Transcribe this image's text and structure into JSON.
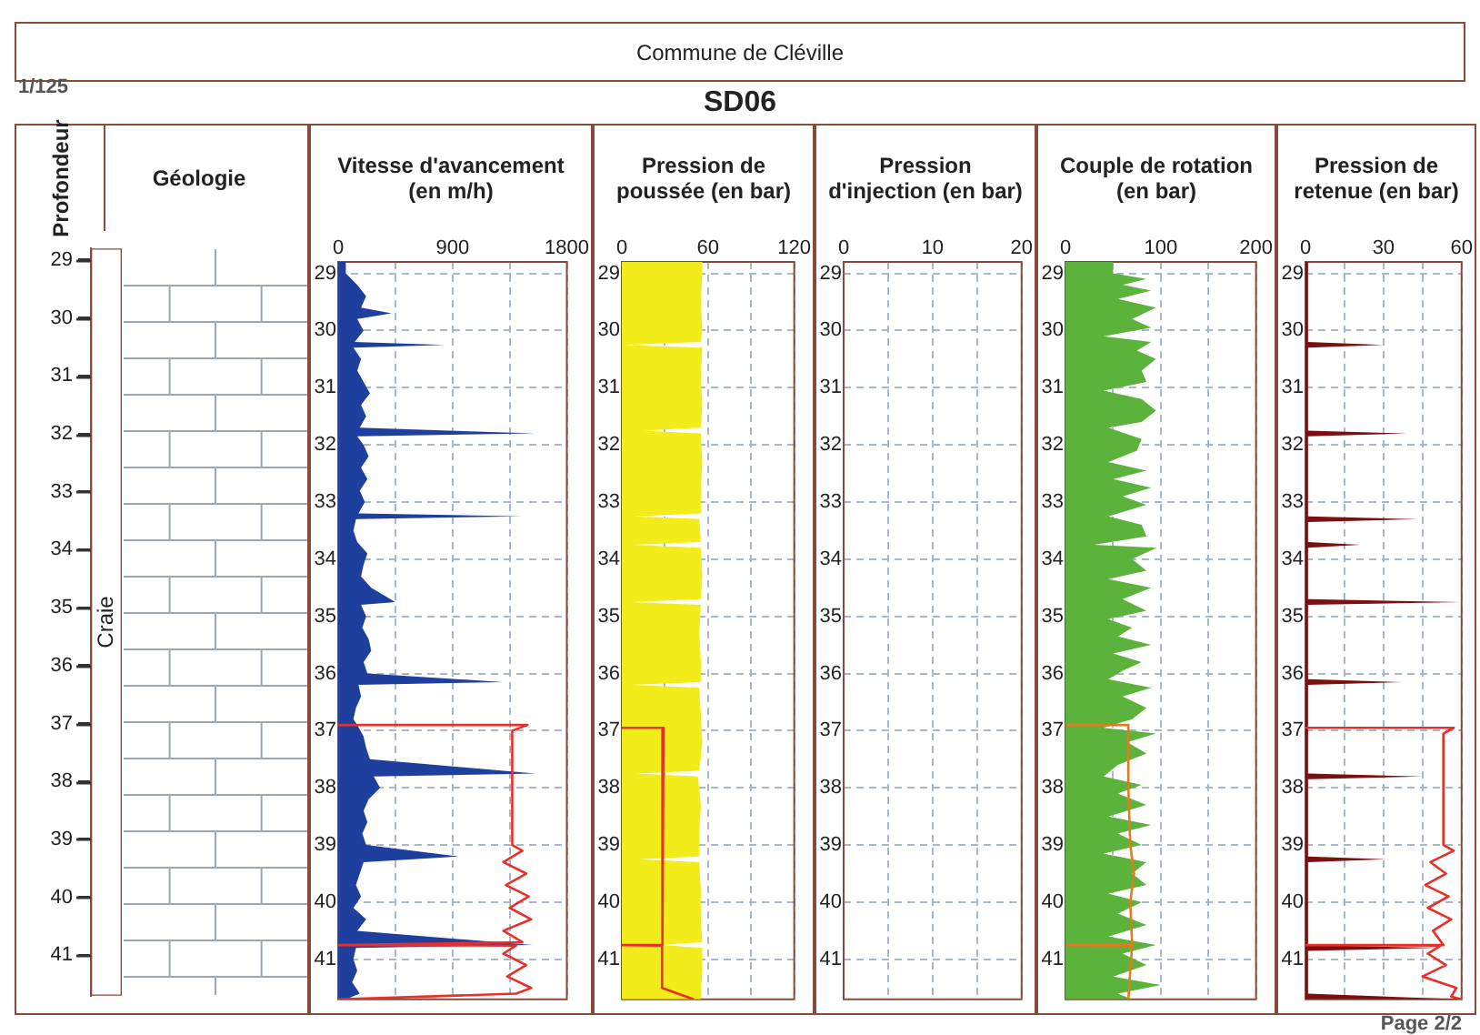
{
  "chart_data": [
    {
      "type": "bar",
      "title": "Géologie",
      "ylabel": "Profondeur",
      "categories": [
        "Craie"
      ],
      "base": [
        28.8
      ],
      "values": [
        12.9
      ],
      "color": "#ffffff",
      "grid": "y",
      "ylim": [
        41.7,
        28.8
      ],
      "yticks": [
        29,
        30,
        31,
        32,
        33,
        34,
        35,
        36,
        37,
        38,
        39,
        40,
        41
      ],
      "annotations": [
        "Commune de Cléville",
        "1/125",
        "SD06",
        "Page 2/2"
      ]
    },
    {
      "type": "area",
      "orientation": "horizontal",
      "title": "Vitesse d'avancement (en m/h)",
      "xlim": [
        0,
        1800
      ],
      "xticks": [
        0,
        {
          "value": 450,
          "label": null
        },
        900,
        {
          "value": 1350,
          "label": null
        },
        1800
      ],
      "ylim": [
        41.7,
        28.8
      ],
      "yticks": [
        29,
        30,
        31,
        32,
        33,
        34,
        35,
        36,
        37,
        38,
        39,
        40,
        41
      ],
      "grid": true,
      "series": [
        {
          "color": "#1f3f9f",
          "x": [
            28.8,
            29.0,
            29.2,
            29.4,
            29.6,
            29.7,
            29.8,
            30.0,
            30.2,
            30.25,
            30.3,
            30.5,
            30.7,
            30.9,
            31.1,
            31.3,
            31.5,
            31.7,
            31.8,
            31.85,
            32.0,
            32.2,
            32.4,
            32.6,
            32.8,
            33.0,
            33.2,
            33.25,
            33.3,
            33.5,
            33.7,
            33.9,
            34.1,
            34.3,
            34.5,
            34.75,
            34.8,
            35.0,
            35.2,
            35.4,
            35.6,
            35.8,
            36.0,
            36.15,
            36.2,
            36.4,
            36.6,
            36.8,
            36.9,
            37.1,
            37.3,
            37.5,
            37.75,
            37.8,
            38.0,
            38.2,
            38.4,
            38.6,
            38.8,
            39.0,
            39.2,
            39.3,
            39.5,
            39.7,
            39.9,
            40.1,
            40.3,
            40.5,
            40.75,
            40.8,
            41.0,
            41.2,
            41.4,
            41.6,
            41.7
          ],
          "values": [
            60,
            60,
            150,
            220,
            180,
            420,
            150,
            200,
            130,
            840,
            120,
            180,
            150,
            200,
            250,
            180,
            220,
            170,
            1550,
            150,
            200,
            240,
            180,
            230,
            170,
            210,
            160,
            1450,
            140,
            120,
            150,
            230,
            200,
            180,
            260,
            450,
            180,
            220,
            190,
            240,
            260,
            200,
            230,
            1300,
            160,
            180,
            140,
            120,
            150,
            200,
            220,
            250,
            1550,
            280,
            330,
            240,
            200,
            230,
            190,
            220,
            950,
            200,
            170,
            140,
            180,
            120,
            220,
            150,
            1530,
            140,
            120,
            150,
            110,
            170,
            60
          ]
        },
        {
          "type": "line",
          "color": "#e8302a",
          "x": [
            36.9,
            36.9,
            37.0,
            38.0,
            39.0,
            39.1,
            39.3,
            39.5,
            39.7,
            39.9,
            40.1,
            40.3,
            40.5,
            40.7,
            40.75,
            40.76,
            40.9,
            41.1,
            41.3,
            41.5,
            41.6,
            41.7
          ],
          "values": [
            0,
            1490,
            1370,
            1370,
            1370,
            1450,
            1300,
            1480,
            1320,
            1500,
            1350,
            1520,
            1300,
            1450,
            0,
            1400,
            1300,
            1480,
            1330,
            1520,
            1400,
            0
          ]
        }
      ]
    },
    {
      "type": "area",
      "orientation": "horizontal",
      "title": "Pression de poussée (en bar)",
      "xlim": [
        0,
        120
      ],
      "xticks": [
        0,
        {
          "value": 30,
          "label": null
        },
        60,
        {
          "value": 90,
          "label": null
        },
        120
      ],
      "ylim": [
        41.7,
        28.8
      ],
      "yticks": [
        29,
        30,
        31,
        32,
        33,
        34,
        35,
        36,
        37,
        38,
        39,
        40,
        41
      ],
      "grid": true,
      "series": [
        {
          "color": "#f2ec1a",
          "x": [
            28.8,
            29.0,
            29.5,
            30.0,
            30.2,
            30.25,
            30.3,
            30.8,
            31.3,
            31.7,
            31.75,
            31.8,
            32.3,
            32.8,
            33.2,
            33.25,
            33.3,
            33.7,
            33.75,
            33.8,
            34.3,
            34.7,
            34.75,
            34.8,
            35.3,
            35.8,
            36.15,
            36.2,
            36.25,
            36.7,
            37.2,
            37.7,
            37.75,
            37.8,
            38.3,
            38.8,
            39.2,
            39.25,
            39.3,
            39.8,
            40.3,
            40.7,
            40.75,
            40.8,
            41.2,
            41.6,
            41.7
          ],
          "values": [
            56,
            56,
            55,
            56,
            55,
            2,
            56,
            55,
            56,
            55,
            15,
            55,
            56,
            55,
            55,
            8,
            54,
            55,
            8,
            55,
            56,
            55,
            7,
            55,
            54,
            55,
            55,
            7,
            54,
            55,
            56,
            54,
            10,
            53,
            55,
            54,
            54,
            12,
            54,
            55,
            55,
            56,
            28,
            56,
            56,
            55,
            55
          ]
        },
        {
          "type": "line",
          "color": "#e8302a",
          "x": [
            36.95,
            36.95,
            38.0,
            39.0,
            40.0,
            40.75,
            40.75,
            40.76,
            41.5,
            41.7
          ],
          "values": [
            0,
            29,
            29,
            28,
            28,
            28,
            0,
            28,
            28,
            50
          ]
        }
      ]
    },
    {
      "type": "line",
      "orientation": "horizontal",
      "title": "Pression d'injection (en bar)",
      "xlim": [
        0,
        20
      ],
      "xticks": [
        0,
        {
          "value": 5,
          "label": null
        },
        10,
        {
          "value": 15,
          "label": null
        },
        20
      ],
      "ylim": [
        41.7,
        28.8
      ],
      "yticks": [
        29,
        30,
        31,
        32,
        33,
        34,
        35,
        36,
        37,
        38,
        39,
        40,
        41
      ],
      "grid": true
    },
    {
      "type": "area",
      "orientation": "horizontal",
      "title": "Couple de rotation (en bar)",
      "xlim": [
        0,
        200
      ],
      "xticks": [
        0,
        {
          "value": 50,
          "label": null
        },
        100,
        {
          "value": 150,
          "label": null
        },
        200
      ],
      "ylim": [
        41.7,
        28.8
      ],
      "yticks": [
        29,
        30,
        31,
        32,
        33,
        34,
        35,
        36,
        37,
        38,
        39,
        40,
        41
      ],
      "grid": true,
      "series": [
        {
          "color": "#5cb33c",
          "x": [
            28.8,
            29.0,
            29.1,
            29.2,
            29.3,
            29.45,
            29.6,
            29.8,
            29.95,
            30.1,
            30.2,
            30.35,
            30.5,
            30.7,
            30.9,
            31.05,
            31.2,
            31.4,
            31.6,
            31.7,
            31.9,
            32.1,
            32.3,
            32.45,
            32.6,
            32.75,
            32.9,
            33.05,
            33.25,
            33.4,
            33.6,
            33.75,
            33.8,
            34.0,
            34.2,
            34.35,
            34.5,
            34.7,
            34.9,
            35.05,
            35.2,
            35.35,
            35.5,
            35.65,
            35.8,
            35.95,
            36.1,
            36.25,
            36.4,
            36.6,
            36.8,
            36.95,
            37.05,
            37.2,
            37.4,
            37.6,
            37.8,
            37.95,
            38.1,
            38.3,
            38.5,
            38.65,
            38.8,
            39.0,
            39.15,
            39.3,
            39.5,
            39.7,
            39.85,
            40.0,
            40.2,
            40.4,
            40.6,
            40.75,
            40.9,
            41.1,
            41.3,
            41.45,
            41.6,
            41.7
          ],
          "values": [
            50,
            50,
            85,
            60,
            90,
            55,
            95,
            70,
            90,
            40,
            90,
            75,
            95,
            80,
            85,
            40,
            80,
            95,
            80,
            45,
            80,
            75,
            45,
            85,
            50,
            90,
            60,
            85,
            45,
            80,
            85,
            30,
            96,
            70,
            85,
            45,
            90,
            60,
            85,
            45,
            70,
            55,
            90,
            50,
            80,
            60,
            45,
            90,
            60,
            85,
            70,
            40,
            95,
            65,
            85,
            55,
            40,
            80,
            55,
            85,
            45,
            90,
            55,
            80,
            40,
            85,
            70,
            85,
            45,
            80,
            55,
            85,
            45,
            95,
            60,
            85,
            50,
            100,
            55,
            70
          ]
        },
        {
          "type": "line",
          "color": "#e07b20",
          "x": [
            36.9,
            36.9,
            38.0,
            39.0,
            39.5,
            40.0,
            40.75,
            40.75,
            40.76,
            41.2,
            41.7
          ],
          "values": [
            0,
            66,
            66,
            68,
            72,
            68,
            70,
            0,
            70,
            68,
            66
          ]
        }
      ]
    },
    {
      "type": "area",
      "orientation": "horizontal",
      "title": "Pression de retenue (en bar)",
      "xlim": [
        0,
        60
      ],
      "xticks": [
        0,
        {
          "value": 15,
          "label": null
        },
        30,
        {
          "value": 45,
          "label": null
        },
        60
      ],
      "ylim": [
        41.7,
        28.8
      ],
      "yticks": [
        29,
        30,
        31,
        32,
        33,
        34,
        35,
        36,
        37,
        38,
        39,
        40,
        41
      ],
      "grid": true,
      "series": [
        {
          "color": "#7a1010",
          "x": [
            28.8,
            30.2,
            30.25,
            30.3,
            31.75,
            31.8,
            31.85,
            33.25,
            33.3,
            33.35,
            33.7,
            33.75,
            33.8,
            34.7,
            34.75,
            34.8,
            36.1,
            36.15,
            36.2,
            37.75,
            37.8,
            37.85,
            39.2,
            39.25,
            39.3,
            40.75,
            40.8,
            40.85,
            41.6,
            41.7
          ],
          "values": [
            1,
            1,
            30,
            1,
            1,
            39,
            1,
            1,
            43,
            1,
            1,
            21,
            1,
            1,
            60,
            1,
            1,
            37,
            1,
            1,
            45,
            1,
            1,
            31,
            1,
            1,
            50,
            1,
            1,
            60
          ]
        },
        {
          "type": "line",
          "color": "#e8302a",
          "x": [
            36.95,
            36.95,
            37.05,
            38.0,
            39.0,
            39.1,
            39.3,
            39.5,
            39.7,
            39.9,
            40.1,
            40.3,
            40.5,
            40.75,
            40.75,
            40.76,
            40.9,
            41.1,
            41.3,
            41.5,
            41.65,
            41.7
          ],
          "values": [
            0,
            57,
            53,
            53,
            53,
            57,
            48,
            54,
            46,
            55,
            47,
            56,
            49,
            53,
            0,
            52,
            47,
            54,
            45,
            58,
            56,
            60
          ]
        }
      ]
    }
  ]
}
